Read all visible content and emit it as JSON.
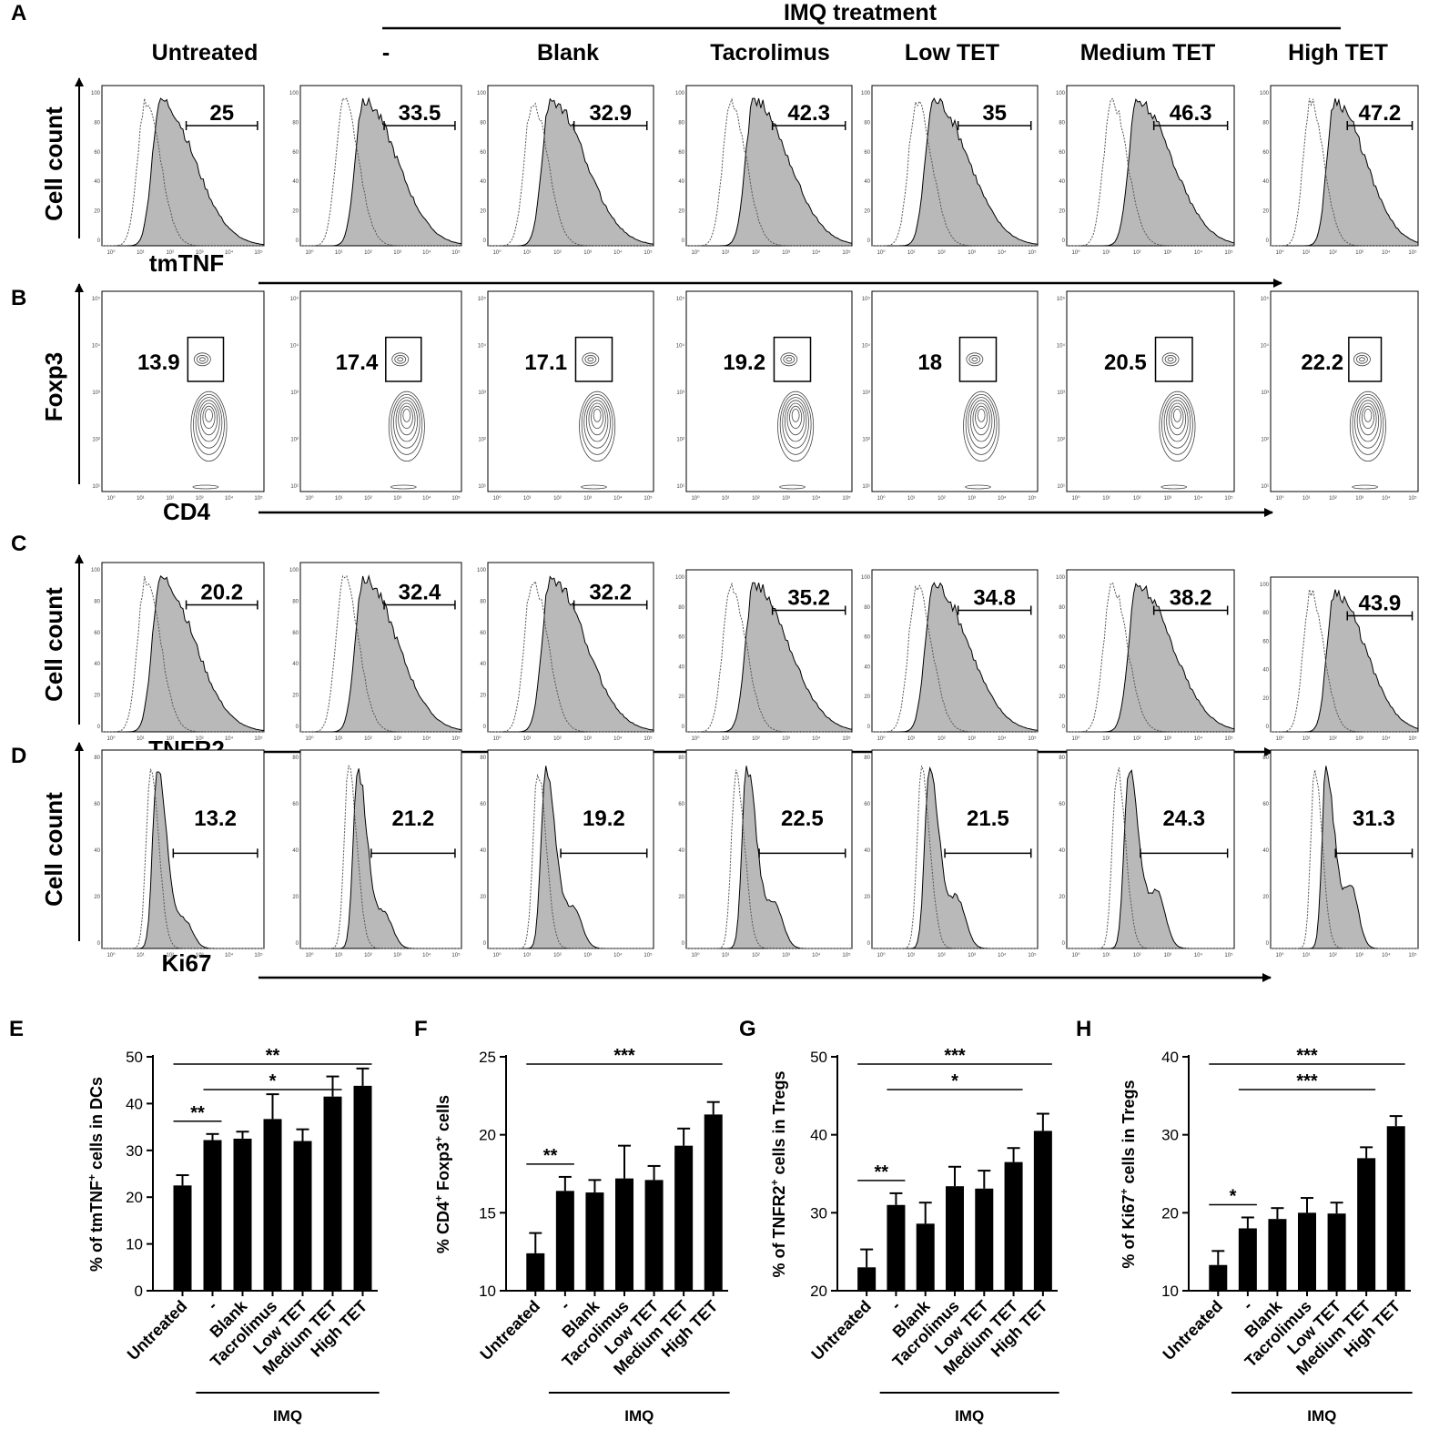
{
  "header": {
    "group_title": "IMQ treatment",
    "columns": [
      "Untreated",
      "-",
      "Blank",
      "Tacrolimus",
      "Low TET",
      "Medium TET",
      "High TET"
    ]
  },
  "rows": [
    {
      "letter": "A",
      "kind": "histogram",
      "ylabel": "Cell count",
      "xlabel": "tmTNF",
      "y_ticks": [
        "0",
        "20",
        "40",
        "60",
        "80",
        "100"
      ],
      "x_ticks": [
        "10⁰",
        "10¹",
        "10²",
        "10³",
        "10⁴",
        "10⁵"
      ],
      "gate_percent": [
        "25",
        "33.5",
        "32.9",
        "42.3",
        "35",
        "46.3",
        "47.2"
      ]
    },
    {
      "letter": "B",
      "kind": "contour",
      "ylabel": "Foxp3",
      "xlabel": "CD4",
      "y_ticks": [
        "10¹",
        "10²",
        "10³",
        "10⁴",
        "10⁵"
      ],
      "x_ticks": [
        "10⁰",
        "10¹",
        "10²",
        "10³",
        "10⁴",
        "10⁵"
      ],
      "gate_percent": [
        "13.9",
        "17.4",
        "17.1",
        "19.2",
        "18",
        "20.5",
        "22.2"
      ]
    },
    {
      "letter": "C",
      "kind": "histogram",
      "ylabel": "Cell count",
      "xlabel": "TNFR2",
      "y_ticks": [
        "0",
        "20",
        "40",
        "60",
        "80",
        "100"
      ],
      "x_ticks": [
        "10⁰",
        "10¹",
        "10²",
        "10³",
        "10⁴",
        "10⁵"
      ],
      "gate_percent": [
        "20.2",
        "32.4",
        "32.2",
        "35.2",
        "34.8",
        "38.2",
        "43.9"
      ]
    },
    {
      "letter": "D",
      "kind": "histogram",
      "ylabel": "Cell count",
      "xlabel": "Ki67",
      "y_ticks": [
        "0",
        "20",
        "40",
        "60",
        "80"
      ],
      "x_ticks": [
        "10⁰",
        "10¹",
        "10²",
        "10³",
        "10⁴",
        "10⁵"
      ],
      "gate_percent": [
        "13.2",
        "21.2",
        "19.2",
        "22.5",
        "21.5",
        "24.3",
        "31.3"
      ]
    }
  ],
  "chart_data": [
    {
      "panel": "E",
      "type": "bar",
      "ylabel_prefix": "% of tmTNF",
      "ylabel_sup": "+",
      "ylabel_suffix": " cells in DCs",
      "categories": [
        "Untreated",
        "-",
        "Blank",
        "Tacrolimus",
        "Low TET",
        "Medium TET",
        "High TET"
      ],
      "values": [
        22.5,
        32.2,
        32.5,
        36.7,
        32.0,
        41.5,
        43.8
      ],
      "errors": [
        2.2,
        1.3,
        1.5,
        5.3,
        2.5,
        4.3,
        3.7
      ],
      "ylim": [
        0,
        50
      ],
      "yticks": [
        "0",
        "10",
        "20",
        "30",
        "40",
        "50"
      ],
      "group_label": "IMQ",
      "significance": [
        {
          "from": 0,
          "to": 1,
          "label": "**"
        },
        {
          "from": 1,
          "to": 5,
          "label": "*"
        },
        {
          "from": 0,
          "to": 6,
          "label": "**"
        }
      ]
    },
    {
      "panel": "F",
      "type": "bar",
      "ylabel_prefix": "% CD4",
      "ylabel_sup": "+",
      "ylabel_suffix": " Foxp3",
      "ylabel_sup2": "+",
      "ylabel_suffix2": " cells",
      "categories": [
        "Untreated",
        "-",
        "Blank",
        "Tacrolimus",
        "Low TET",
        "Medium TET",
        "High TET"
      ],
      "values": [
        12.4,
        16.4,
        16.3,
        17.2,
        17.1,
        19.3,
        21.3
      ],
      "errors": [
        1.3,
        0.9,
        0.8,
        2.1,
        0.9,
        1.1,
        0.8
      ],
      "ylim": [
        10,
        25
      ],
      "yticks": [
        "10",
        "15",
        "20",
        "25"
      ],
      "group_label": "IMQ",
      "significance": [
        {
          "from": 0,
          "to": 1,
          "label": "**"
        },
        {
          "from": 0,
          "to": 6,
          "label": "***"
        }
      ]
    },
    {
      "panel": "G",
      "type": "bar",
      "ylabel_prefix": "% of TNFR2",
      "ylabel_sup": "+",
      "ylabel_suffix": " cells in Tregs",
      "categories": [
        "Untreated",
        "-",
        "Blank",
        "Tacrolimus",
        "Low TET",
        "Medium TET",
        "High TET"
      ],
      "values": [
        23.0,
        31.0,
        28.6,
        33.4,
        33.1,
        36.5,
        40.5
      ],
      "errors": [
        2.3,
        1.5,
        2.7,
        2.5,
        2.3,
        1.8,
        2.2
      ],
      "ylim": [
        20,
        50
      ],
      "yticks": [
        "20",
        "30",
        "40",
        "50"
      ],
      "group_label": "IMQ",
      "significance": [
        {
          "from": 0,
          "to": 1,
          "label": "**"
        },
        {
          "from": 1,
          "to": 5,
          "label": "*"
        },
        {
          "from": 0,
          "to": 6,
          "label": "***"
        }
      ]
    },
    {
      "panel": "H",
      "type": "bar",
      "ylabel_prefix": "% of Ki67",
      "ylabel_sup": "+",
      "ylabel_suffix": " cells in Tregs",
      "categories": [
        "Untreated",
        "-",
        "Blank",
        "Tacrolimus",
        "Low TET",
        "Medium TET",
        "High TET"
      ],
      "values": [
        13.3,
        18.0,
        19.2,
        20.0,
        19.9,
        27.0,
        31.1
      ],
      "errors": [
        1.8,
        1.4,
        1.4,
        1.9,
        1.4,
        1.4,
        1.3
      ],
      "ylim": [
        10,
        40
      ],
      "yticks": [
        "10",
        "20",
        "30",
        "40"
      ],
      "group_label": "IMQ",
      "significance": [
        {
          "from": 0,
          "to": 1,
          "label": "*"
        },
        {
          "from": 1,
          "to": 5,
          "label": "***"
        },
        {
          "from": 0,
          "to": 6,
          "label": "***"
        }
      ]
    }
  ]
}
